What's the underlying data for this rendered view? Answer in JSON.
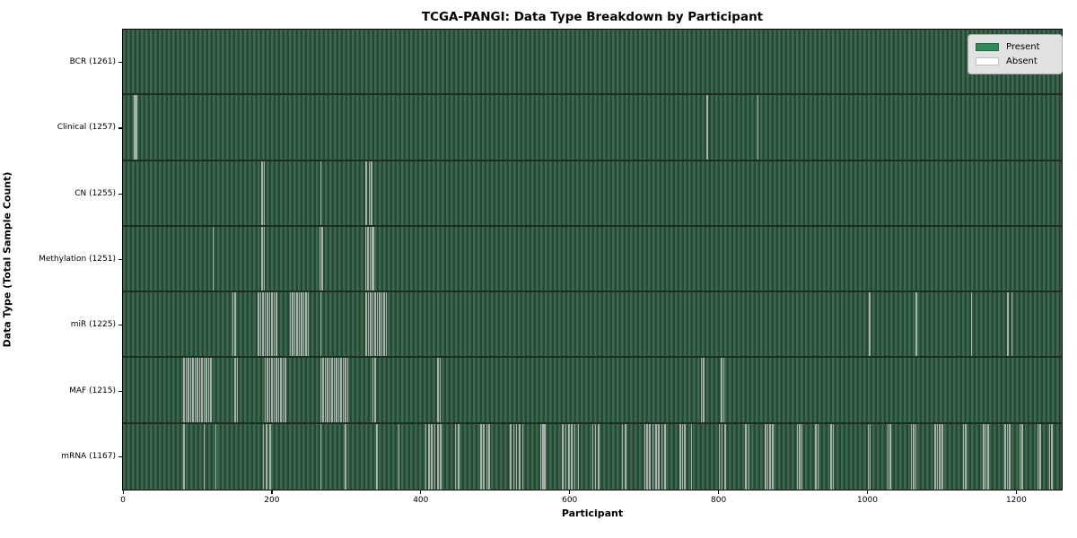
{
  "chart_data": {
    "type": "heatmap",
    "title": "TCGA-PANGI: Data Type Breakdown by Participant",
    "xlabel": "Participant",
    "ylabel": "Data Type (Total Sample Count)",
    "n_participants": 1261,
    "x_ticks": [
      0,
      200,
      400,
      600,
      800,
      1000,
      1200
    ],
    "grid": false,
    "legend_position": "upper right",
    "legend": [
      {
        "label": "Present",
        "color": "#2e8b57"
      },
      {
        "label": "Absent",
        "color": "#ffffff"
      }
    ],
    "colors": {
      "present_stripe_light": "#3a6a4e",
      "present_stripe_dark": "#294834",
      "absent_line": "#aab0ab",
      "row_separator": "#1c2d22"
    },
    "rows": [
      {
        "label": "BCR (1261)",
        "data_type": "BCR",
        "present_count": 1261,
        "absent_positions": []
      },
      {
        "label": "Clinical (1257)",
        "data_type": "Clinical",
        "present_count": 1257,
        "absent_positions": [
          15,
          17,
          784,
          852
        ]
      },
      {
        "label": "CN (1255)",
        "data_type": "CN",
        "present_count": 1255,
        "absent_positions": [
          186,
          189,
          265,
          326,
          330,
          333
        ]
      },
      {
        "label": "Methylation (1251)",
        "data_type": "Methylation",
        "present_count": 1251,
        "absent_positions": [
          120,
          186,
          189,
          264,
          267,
          325,
          328,
          331,
          334,
          336
        ]
      },
      {
        "label": "miR (1225)",
        "data_type": "miR",
        "present_count": 1225,
        "absent_positions": [
          147,
          150,
          181,
          184,
          187,
          190,
          193,
          196,
          199,
          202,
          205,
          224,
          227,
          230,
          233,
          236,
          239,
          242,
          245,
          248,
          265,
          326,
          329,
          332,
          335,
          338,
          341,
          344,
          347,
          350,
          353,
          1002,
          1065,
          1139,
          1188,
          1193
        ]
      },
      {
        "label": "MAF (1215)",
        "data_type": "MAF",
        "present_count": 1215,
        "absent_positions": [
          81,
          84,
          87,
          90,
          93,
          96,
          99,
          102,
          105,
          108,
          111,
          114,
          117,
          150,
          153,
          190,
          193,
          196,
          199,
          202,
          205,
          208,
          211,
          214,
          217,
          265,
          268,
          271,
          274,
          277,
          280,
          283,
          286,
          289,
          292,
          295,
          298,
          301,
          335,
          338,
          422,
          425,
          776,
          779,
          803,
          806
        ]
      },
      {
        "label": "mRNA (1167)",
        "data_type": "mRNA",
        "present_count": 1167,
        "absent_positions": [
          81,
          108,
          124,
          188,
          192,
          197,
          265,
          298,
          340,
          370,
          406,
          410,
          414,
          418,
          422,
          426,
          446,
          450,
          480,
          484,
          488,
          491,
          520,
          524,
          528,
          532,
          536,
          560,
          563,
          566,
          590,
          594,
          598,
          602,
          606,
          611,
          630,
          634,
          638,
          670,
          674,
          700,
          703,
          707,
          711,
          715,
          719,
          723,
          727,
          748,
          751,
          754,
          763,
          800,
          804,
          808,
          836,
          840,
          862,
          865,
          868,
          872,
          905,
          908,
          911,
          930,
          933,
          950,
          953,
          1000,
          1003,
          1027,
          1030,
          1058,
          1061,
          1064,
          1090,
          1093,
          1096,
          1100,
          1128,
          1131,
          1155,
          1158,
          1161,
          1184,
          1187,
          1190,
          1204,
          1207,
          1228,
          1231,
          1244,
          1247
        ]
      }
    ]
  }
}
